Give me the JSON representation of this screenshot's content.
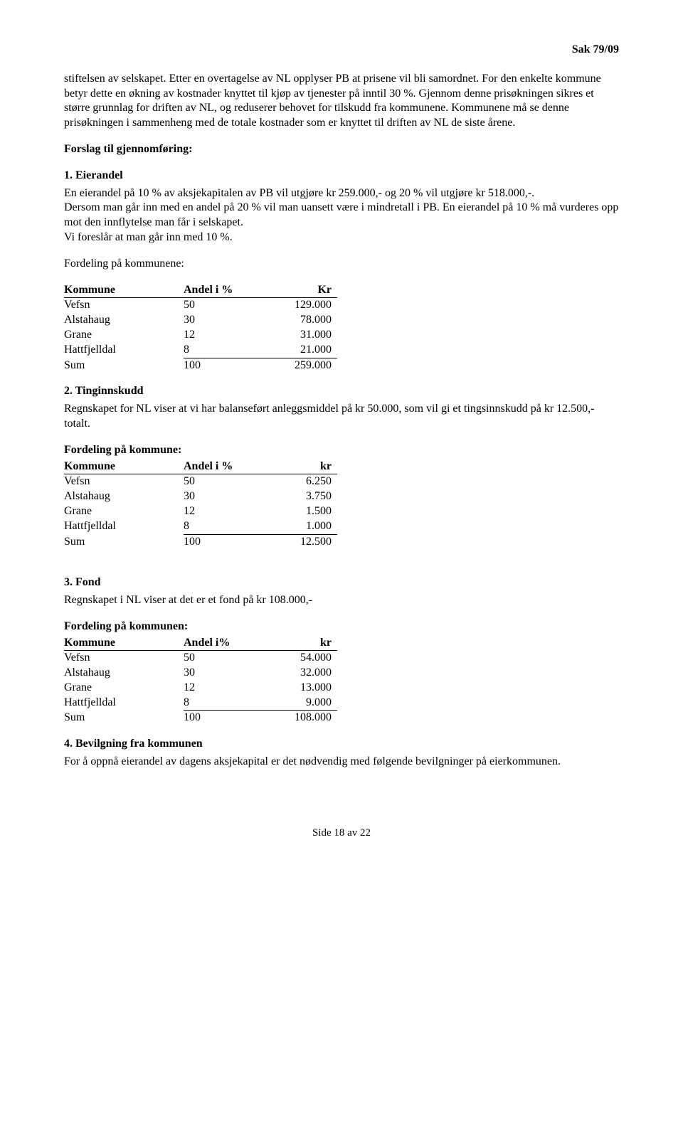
{
  "header": {
    "case_number": "Sak 79/09"
  },
  "p1": "stiftelsen av selskapet. Etter en overtagelse av NL opplyser PB at prisene vil bli samordnet. For den enkelte kommune betyr dette en økning av kostnader knyttet til kjøp av tjenester på inntil 30 %. Gjennom denne prisøkningen sikres et større grunnlag for driften av NL, og reduserer behovet for tilskudd fra kommunene. Kommunene må se denne prisøkningen i sammenheng med de totale kostnader som er knyttet til driften av NL de siste årene.",
  "forslag_heading": "Forslag til gjennomføring:",
  "sec1": {
    "title": "1. Eierandel",
    "text": "En eierandel på 10 % av aksjekapitalen av PB vil utgjøre kr 259.000,- og 20 % vil utgjøre kr 518.000,-.\nDersom man går inn med en andel på 20 % vil man uansett være i mindretall i PB. En eierandel på 10 % må vurderes opp mot den innflytelse man får i selskapet.\nVi foreslår at man går inn med 10 %.",
    "fordeling_label": "Fordeling på kommunene:",
    "headers": [
      "Kommune",
      "Andel i %",
      "Kr"
    ],
    "rows": [
      [
        "Vefsn",
        "50",
        "129.000"
      ],
      [
        "Alstahaug",
        "30",
        "78.000"
      ],
      [
        "Grane",
        "12",
        "31.000"
      ],
      [
        "Hattfjelldal",
        "8",
        "21.000"
      ]
    ],
    "sum": [
      "Sum",
      "100",
      "259.000"
    ]
  },
  "sec2": {
    "title": "2. Tinginnskudd",
    "text": "Regnskapet for NL viser at vi har balanseført anleggsmiddel på kr 50.000, som vil gi et tingsinnskudd på kr 12.500,- totalt.",
    "fordeling_label": "Fordeling på kommune:",
    "headers": [
      "Kommune",
      "Andel i %",
      "kr"
    ],
    "rows": [
      [
        "Vefsn",
        "50",
        "6.250"
      ],
      [
        "Alstahaug",
        "30",
        "3.750"
      ],
      [
        "Grane",
        "12",
        "1.500"
      ],
      [
        "Hattfjelldal",
        "8",
        "1.000"
      ]
    ],
    "sum": [
      "Sum",
      "100",
      "12.500"
    ]
  },
  "sec3": {
    "title": "3. Fond",
    "text": "Regnskapet i NL viser at det er et fond på kr 108.000,-",
    "fordeling_label": "Fordeling på kommunen:",
    "headers": [
      "Kommune",
      "Andel i%",
      "kr"
    ],
    "rows": [
      [
        "Vefsn",
        "50",
        "54.000"
      ],
      [
        "Alstahaug",
        "30",
        "32.000"
      ],
      [
        "Grane",
        "12",
        "13.000"
      ],
      [
        "Hattfjelldal",
        "8",
        "9.000"
      ]
    ],
    "sum": [
      "Sum",
      "100",
      "108.000"
    ]
  },
  "sec4": {
    "title": "4. Bevilgning fra kommunen",
    "text": "For å oppnå eierandel av dagens aksjekapital er det nødvendig med følgende bevilgninger på eierkommunen."
  },
  "footer": {
    "page": "Side 18 av 22"
  }
}
